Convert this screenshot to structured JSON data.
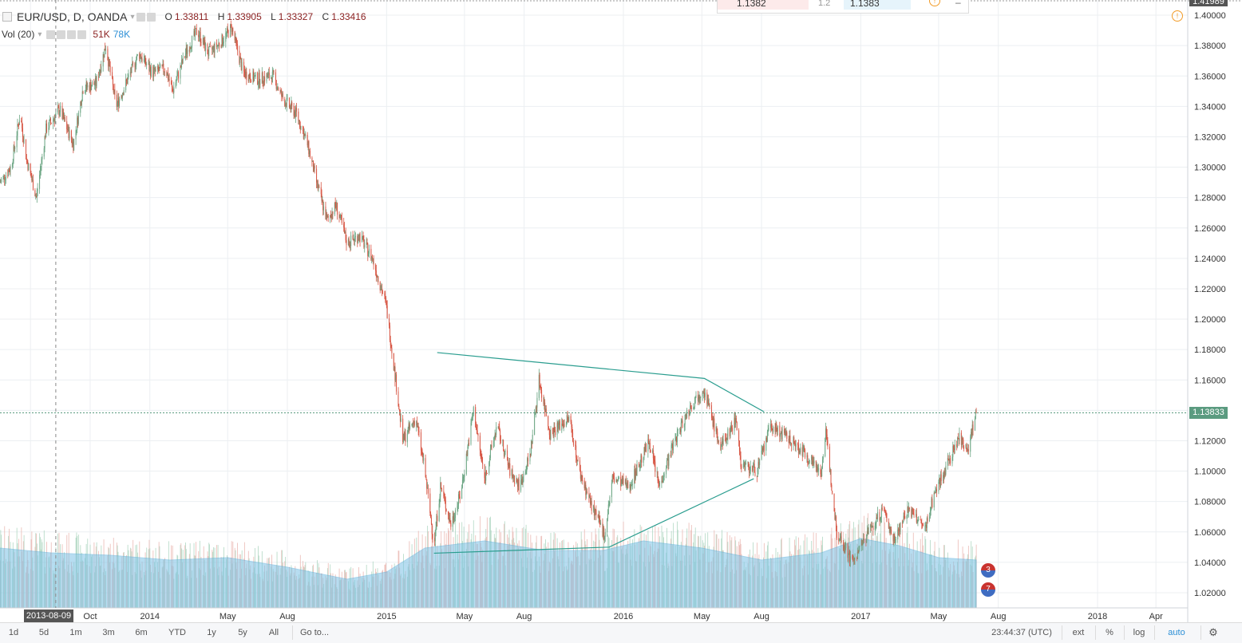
{
  "header": {
    "symbol": "EUR/USD, D, OANDA",
    "ohlc": [
      {
        "key": "O",
        "value": "1.33811"
      },
      {
        "key": "H",
        "value": "1.33905"
      },
      {
        "key": "L",
        "value": "1.33327"
      },
      {
        "key": "C",
        "value": "1.33416"
      }
    ]
  },
  "volume_legend": {
    "label": "Vol (20)",
    "value1": "51K",
    "value2": "78K"
  },
  "trade_panel": {
    "sell": "1.1382",
    "spread": "1.2",
    "buy": "1.1383"
  },
  "price_axis": {
    "top_label": "1.41989",
    "last_price": "1.13833"
  },
  "crosshair_date": "2013-08-09",
  "badges": [
    {
      "label": "3"
    },
    {
      "label": "7"
    }
  ],
  "bottom_bar": {
    "intervals": [
      "1d",
      "5d",
      "1m",
      "3m",
      "6m",
      "YTD",
      "1y",
      "5y",
      "All"
    ],
    "goto": "Go to...",
    "time": "23:44:37 (UTC)",
    "options": [
      "ext",
      "%",
      "log",
      "auto"
    ]
  },
  "colors": {
    "up": "#6ba583",
    "down": "#d75442",
    "trendline": "#2a9d8f",
    "volume_ma": "#7ec3e6",
    "grid": "#eceff2"
  },
  "chart_data": {
    "type": "line",
    "title": "EUR/USD, D, OANDA",
    "xlabel": "",
    "ylabel": "",
    "ylim": [
      1.01,
      1.41
    ],
    "y_ticks": [
      1.02,
      1.04,
      1.06,
      1.08,
      1.1,
      1.12,
      1.14,
      1.16,
      1.18,
      1.2,
      1.22,
      1.24,
      1.26,
      1.28,
      1.3,
      1.32,
      1.34,
      1.36,
      1.38,
      1.4
    ],
    "x_ticks": [
      "Ju",
      "Oct",
      "2014",
      "May",
      "Aug",
      "2015",
      "May",
      "Aug",
      "2016",
      "May",
      "Aug",
      "2017",
      "May",
      "Aug",
      "2018",
      "Apr"
    ],
    "x_tick_dates": [
      "2013-07-01",
      "2013-10-01",
      "2014-01-01",
      "2014-05-01",
      "2014-08-01",
      "2015-01-01",
      "2015-05-01",
      "2015-08-01",
      "2016-01-01",
      "2016-05-01",
      "2016-08-01",
      "2017-01-01",
      "2017-05-01",
      "2017-08-01",
      "2018-01-01",
      "2018-04-01"
    ],
    "x_range": [
      "2013-05-15",
      "2018-05-20"
    ],
    "series": [
      {
        "name": "EUR/USD",
        "points": [
          [
            "2013-05-15",
            1.29
          ],
          [
            "2013-06-01",
            1.3
          ],
          [
            "2013-06-15",
            1.335
          ],
          [
            "2013-06-25",
            1.305
          ],
          [
            "2013-07-10",
            1.28
          ],
          [
            "2013-07-25",
            1.325
          ],
          [
            "2013-08-15",
            1.338
          ],
          [
            "2013-09-05",
            1.315
          ],
          [
            "2013-09-20",
            1.352
          ],
          [
            "2013-10-10",
            1.355
          ],
          [
            "2013-10-25",
            1.38
          ],
          [
            "2013-11-10",
            1.34
          ],
          [
            "2013-11-25",
            1.355
          ],
          [
            "2013-12-15",
            1.375
          ],
          [
            "2014-01-05",
            1.362
          ],
          [
            "2014-01-25",
            1.365
          ],
          [
            "2014-02-05",
            1.35
          ],
          [
            "2014-02-25",
            1.375
          ],
          [
            "2014-03-15",
            1.39
          ],
          [
            "2014-04-01",
            1.375
          ],
          [
            "2014-04-20",
            1.382
          ],
          [
            "2014-05-07",
            1.392
          ],
          [
            "2014-05-25",
            1.362
          ],
          [
            "2014-06-15",
            1.358
          ],
          [
            "2014-07-10",
            1.36
          ],
          [
            "2014-07-25",
            1.345
          ],
          [
            "2014-08-15",
            1.335
          ],
          [
            "2014-09-01",
            1.315
          ],
          [
            "2014-09-15",
            1.29
          ],
          [
            "2014-10-01",
            1.265
          ],
          [
            "2014-10-15",
            1.275
          ],
          [
            "2014-11-01",
            1.25
          ],
          [
            "2014-11-20",
            1.255
          ],
          [
            "2014-12-10",
            1.24
          ],
          [
            "2014-12-31",
            1.21
          ],
          [
            "2015-01-15",
            1.16
          ],
          [
            "2015-01-26",
            1.12
          ],
          [
            "2015-02-15",
            1.135
          ],
          [
            "2015-03-01",
            1.1
          ],
          [
            "2015-03-15",
            1.052
          ],
          [
            "2015-03-25",
            1.09
          ],
          [
            "2015-04-10",
            1.065
          ],
          [
            "2015-04-25",
            1.085
          ],
          [
            "2015-05-15",
            1.14
          ],
          [
            "2015-06-01",
            1.095
          ],
          [
            "2015-06-20",
            1.13
          ],
          [
            "2015-07-10",
            1.1
          ],
          [
            "2015-07-25",
            1.09
          ],
          [
            "2015-08-10",
            1.11
          ],
          [
            "2015-08-24",
            1.16
          ],
          [
            "2015-09-10",
            1.125
          ],
          [
            "2015-10-10",
            1.135
          ],
          [
            "2015-10-25",
            1.1
          ],
          [
            "2015-11-15",
            1.075
          ],
          [
            "2015-12-03",
            1.058
          ],
          [
            "2015-12-15",
            1.095
          ],
          [
            "2016-01-10",
            1.09
          ],
          [
            "2016-02-10",
            1.12
          ],
          [
            "2016-02-25",
            1.09
          ],
          [
            "2016-03-20",
            1.12
          ],
          [
            "2016-04-10",
            1.14
          ],
          [
            "2016-05-03",
            1.155
          ],
          [
            "2016-05-30",
            1.115
          ],
          [
            "2016-06-23",
            1.135
          ],
          [
            "2016-06-30",
            1.105
          ],
          [
            "2016-07-25",
            1.1
          ],
          [
            "2016-08-15",
            1.13
          ],
          [
            "2016-09-15",
            1.12
          ],
          [
            "2016-10-10",
            1.11
          ],
          [
            "2016-11-01",
            1.1
          ],
          [
            "2016-11-08",
            1.125
          ],
          [
            "2016-11-25",
            1.06
          ],
          [
            "2016-12-20",
            1.04
          ],
          [
            "2017-01-10",
            1.058
          ],
          [
            "2017-02-05",
            1.075
          ],
          [
            "2017-02-20",
            1.055
          ],
          [
            "2017-03-15",
            1.075
          ],
          [
            "2017-04-10",
            1.062
          ],
          [
            "2017-04-24",
            1.085
          ],
          [
            "2017-05-15",
            1.105
          ],
          [
            "2017-06-01",
            1.122
          ],
          [
            "2017-06-15",
            1.115
          ],
          [
            "2017-06-28",
            1.138
          ]
        ]
      }
    ],
    "volume": {
      "label": "Vol (20)",
      "ylim": [
        0,
        100
      ],
      "ma_points": [
        [
          "2013-05-15",
          50
        ],
        [
          "2013-08-01",
          46
        ],
        [
          "2013-11-01",
          44
        ],
        [
          "2014-02-01",
          40
        ],
        [
          "2014-05-01",
          42
        ],
        [
          "2014-08-01",
          34
        ],
        [
          "2014-11-01",
          24
        ],
        [
          "2015-01-01",
          30
        ],
        [
          "2015-03-01",
          50
        ],
        [
          "2015-06-01",
          56
        ],
        [
          "2015-09-01",
          48
        ],
        [
          "2015-12-01",
          48
        ],
        [
          "2016-02-01",
          56
        ],
        [
          "2016-05-01",
          50
        ],
        [
          "2016-08-01",
          40
        ],
        [
          "2016-11-01",
          46
        ],
        [
          "2017-01-01",
          58
        ],
        [
          "2017-03-01",
          52
        ],
        [
          "2017-05-01",
          42
        ],
        [
          "2017-06-28",
          40
        ]
      ]
    },
    "annotations": [
      {
        "type": "trendline",
        "points": [
          [
            "2015-03-20",
            1.178
          ],
          [
            "2016-05-05",
            1.161
          ],
          [
            "2016-08-05",
            1.139
          ]
        ]
      },
      {
        "type": "trendline",
        "points": [
          [
            "2015-03-15",
            1.046
          ],
          [
            "2015-12-10",
            1.05
          ],
          [
            "2016-07-20",
            1.095
          ]
        ]
      }
    ],
    "grid": true,
    "legend": "top-left"
  }
}
